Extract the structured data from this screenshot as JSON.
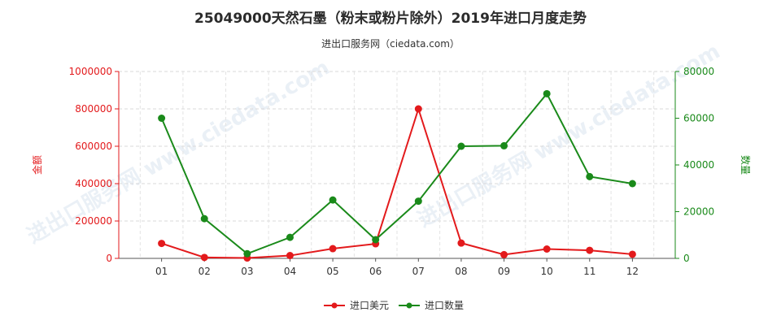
{
  "title": "25049000天然石墨（粉末或粉片除外）2019年进口月度走势",
  "subtitle": "进出口服务网（ciedata.com）",
  "watermark": "进出口服务网 www.ciedata.com",
  "chart_data": {
    "type": "line",
    "categories": [
      "01",
      "02",
      "03",
      "04",
      "05",
      "06",
      "07",
      "08",
      "09",
      "10",
      "11",
      "12"
    ],
    "series": [
      {
        "name": "进口美元",
        "axis": "left",
        "color": "#e31a1c",
        "values": [
          80000,
          5000,
          2000,
          15000,
          52000,
          78000,
          800000,
          82000,
          20000,
          50000,
          43000,
          22000
        ]
      },
      {
        "name": "进口数量",
        "axis": "right",
        "color": "#1a8a1a",
        "values": [
          60000,
          17000,
          2000,
          9000,
          25000,
          8000,
          24500,
          48000,
          48200,
          70500,
          35000,
          32000
        ]
      }
    ],
    "y_left": {
      "label": "金额",
      "min": 0,
      "max": 1000000,
      "ticks": [
        0,
        200000,
        400000,
        600000,
        800000,
        1000000
      ]
    },
    "y_right": {
      "label": "数量",
      "min": 0,
      "max": 80000,
      "ticks": [
        0,
        20000,
        40000,
        60000,
        80000
      ]
    },
    "grid": true,
    "legend": "bottom"
  }
}
